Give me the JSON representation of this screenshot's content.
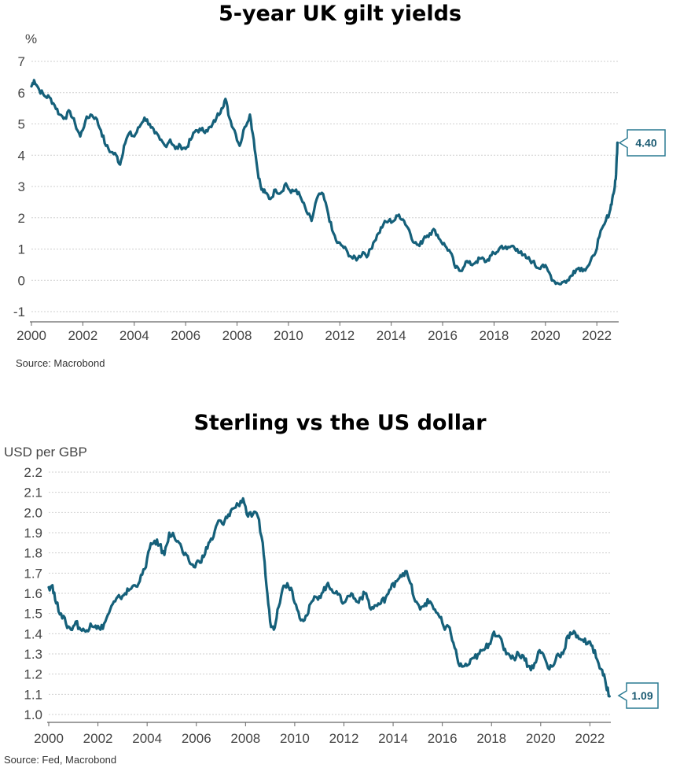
{
  "colors": {
    "line": "#15607a",
    "grid": "#cfcfcf",
    "axis": "#666666",
    "callout_border": "#2a7a92"
  },
  "chart_data": [
    {
      "type": "line",
      "title": "5-year UK gilt yields",
      "ylabel": "%",
      "source": "Source: Macrobond",
      "xlim": [
        2000,
        2022.85
      ],
      "ylim": [
        -1,
        7
      ],
      "xticks": [
        "2000",
        "2002",
        "2004",
        "2006",
        "2008",
        "2010",
        "2012",
        "2014",
        "2016",
        "2018",
        "2020",
        "2022"
      ],
      "yticks": [
        "-1",
        "0",
        "1",
        "2",
        "3",
        "4",
        "5",
        "6",
        "7"
      ],
      "last_value_label": "4.40",
      "series": [
        {
          "name": "5-year UK gilt yield",
          "x": [
            2000.0,
            2000.1,
            2000.3,
            2000.5,
            2000.7,
            2000.9,
            2001.1,
            2001.3,
            2001.5,
            2001.7,
            2001.9,
            2002.1,
            2002.3,
            2002.5,
            2002.7,
            2002.9,
            2003.1,
            2003.3,
            2003.45,
            2003.6,
            2003.8,
            2004.0,
            2004.2,
            2004.4,
            2004.6,
            2004.8,
            2005.0,
            2005.2,
            2005.4,
            2005.6,
            2005.8,
            2006.0,
            2006.2,
            2006.4,
            2006.6,
            2006.8,
            2007.0,
            2007.2,
            2007.4,
            2007.55,
            2007.7,
            2007.9,
            2008.1,
            2008.3,
            2008.5,
            2008.65,
            2008.8,
            2008.95,
            2009.1,
            2009.3,
            2009.5,
            2009.7,
            2009.9,
            2010.1,
            2010.3,
            2010.5,
            2010.7,
            2010.9,
            2011.1,
            2011.3,
            2011.5,
            2011.7,
            2011.9,
            2012.1,
            2012.3,
            2012.5,
            2012.7,
            2012.9,
            2013.1,
            2013.3,
            2013.5,
            2013.7,
            2013.9,
            2014.1,
            2014.3,
            2014.5,
            2014.7,
            2014.9,
            2015.1,
            2015.3,
            2015.5,
            2015.7,
            2015.9,
            2016.1,
            2016.3,
            2016.5,
            2016.7,
            2016.9,
            2017.1,
            2017.3,
            2017.5,
            2017.7,
            2017.9,
            2018.1,
            2018.3,
            2018.5,
            2018.7,
            2018.9,
            2019.1,
            2019.3,
            2019.5,
            2019.7,
            2019.9,
            2020.1,
            2020.3,
            2020.5,
            2020.7,
            2020.9,
            2021.1,
            2021.3,
            2021.5,
            2021.7,
            2021.9,
            2022.1,
            2022.3,
            2022.5,
            2022.6,
            2022.7,
            2022.75,
            2022.8
          ],
          "values": [
            6.2,
            6.4,
            6.1,
            5.9,
            5.85,
            5.6,
            5.3,
            5.2,
            5.4,
            5.0,
            4.6,
            5.1,
            5.3,
            5.2,
            4.8,
            4.3,
            4.1,
            4.0,
            3.7,
            4.3,
            4.7,
            4.6,
            4.9,
            5.2,
            5.0,
            4.7,
            4.5,
            4.3,
            4.5,
            4.2,
            4.3,
            4.2,
            4.5,
            4.8,
            4.8,
            4.8,
            4.9,
            5.2,
            5.5,
            5.8,
            5.2,
            4.8,
            4.3,
            4.9,
            5.3,
            4.5,
            3.5,
            2.9,
            2.8,
            2.6,
            2.9,
            2.8,
            3.1,
            2.8,
            2.9,
            2.6,
            2.2,
            1.9,
            2.6,
            2.8,
            2.3,
            1.6,
            1.2,
            1.1,
            0.9,
            0.7,
            0.7,
            0.9,
            0.8,
            1.2,
            1.5,
            1.8,
            1.9,
            1.9,
            2.1,
            1.9,
            1.6,
            1.2,
            1.1,
            1.4,
            1.5,
            1.6,
            1.3,
            1.1,
            0.9,
            0.4,
            0.3,
            0.6,
            0.5,
            0.6,
            0.7,
            0.6,
            0.8,
            0.9,
            1.1,
            1.0,
            1.1,
            1.0,
            0.8,
            0.7,
            0.6,
            0.4,
            0.5,
            0.3,
            0.0,
            -0.1,
            -0.05,
            0.0,
            0.3,
            0.4,
            0.35,
            0.5,
            0.8,
            1.4,
            1.8,
            2.2,
            2.6,
            3.0,
            3.4,
            4.4
          ]
        }
      ]
    },
    {
      "type": "line",
      "title": "Sterling vs the US dollar",
      "ylabel": "USD per GBP",
      "source": "Source: Fed, Macrobond",
      "xlim": [
        2000,
        2022.85
      ],
      "ylim": [
        1.0,
        2.2
      ],
      "xticks": [
        "2000",
        "2002",
        "2004",
        "2006",
        "2008",
        "2010",
        "2012",
        "2014",
        "2016",
        "2018",
        "2020",
        "2022"
      ],
      "yticks": [
        "1.0",
        "1.1",
        "1.2",
        "1.3",
        "1.4",
        "1.5",
        "1.6",
        "1.7",
        "1.8",
        "1.9",
        "2.0",
        "2.1",
        "2.2"
      ],
      "last_value_label": "1.09",
      "series": [
        {
          "name": "USD per GBP",
          "x": [
            2000.0,
            2000.15,
            2000.3,
            2000.5,
            2000.7,
            2000.9,
            2001.1,
            2001.3,
            2001.5,
            2001.7,
            2001.9,
            2002.1,
            2002.3,
            2002.5,
            2002.7,
            2002.9,
            2003.1,
            2003.3,
            2003.5,
            2003.7,
            2003.9,
            2004.1,
            2004.3,
            2004.5,
            2004.7,
            2004.9,
            2005.1,
            2005.3,
            2005.5,
            2005.7,
            2005.9,
            2006.1,
            2006.3,
            2006.5,
            2006.7,
            2006.9,
            2007.1,
            2007.3,
            2007.5,
            2007.7,
            2007.9,
            2008.1,
            2008.3,
            2008.5,
            2008.7,
            2008.85,
            2009.0,
            2009.15,
            2009.3,
            2009.5,
            2009.7,
            2009.9,
            2010.1,
            2010.3,
            2010.5,
            2010.7,
            2010.9,
            2011.1,
            2011.3,
            2011.5,
            2011.7,
            2011.9,
            2012.1,
            2012.3,
            2012.5,
            2012.7,
            2012.9,
            2013.1,
            2013.3,
            2013.5,
            2013.7,
            2013.9,
            2014.1,
            2014.3,
            2014.5,
            2014.7,
            2014.9,
            2015.1,
            2015.3,
            2015.5,
            2015.7,
            2015.9,
            2016.1,
            2016.3,
            2016.5,
            2016.7,
            2016.9,
            2017.1,
            2017.3,
            2017.5,
            2017.7,
            2017.9,
            2018.1,
            2018.3,
            2018.5,
            2018.7,
            2018.9,
            2019.1,
            2019.3,
            2019.5,
            2019.7,
            2019.9,
            2020.1,
            2020.3,
            2020.5,
            2020.7,
            2020.9,
            2021.1,
            2021.3,
            2021.5,
            2021.7,
            2021.9,
            2022.1,
            2022.3,
            2022.5,
            2022.65,
            2022.8
          ],
          "values": [
            1.63,
            1.64,
            1.55,
            1.5,
            1.45,
            1.42,
            1.46,
            1.42,
            1.41,
            1.45,
            1.44,
            1.42,
            1.46,
            1.52,
            1.56,
            1.58,
            1.6,
            1.62,
            1.64,
            1.66,
            1.72,
            1.82,
            1.86,
            1.84,
            1.79,
            1.9,
            1.88,
            1.85,
            1.79,
            1.76,
            1.73,
            1.76,
            1.78,
            1.85,
            1.88,
            1.96,
            1.94,
            1.99,
            2.02,
            2.04,
            2.07,
            1.98,
            1.99,
            1.98,
            1.85,
            1.64,
            1.46,
            1.42,
            1.52,
            1.62,
            1.65,
            1.61,
            1.52,
            1.47,
            1.49,
            1.56,
            1.58,
            1.6,
            1.64,
            1.62,
            1.61,
            1.56,
            1.57,
            1.6,
            1.56,
            1.58,
            1.6,
            1.52,
            1.54,
            1.55,
            1.58,
            1.62,
            1.66,
            1.69,
            1.71,
            1.65,
            1.56,
            1.52,
            1.55,
            1.56,
            1.52,
            1.48,
            1.42,
            1.43,
            1.33,
            1.24,
            1.24,
            1.25,
            1.28,
            1.3,
            1.32,
            1.35,
            1.41,
            1.39,
            1.32,
            1.3,
            1.28,
            1.3,
            1.29,
            1.24,
            1.23,
            1.31,
            1.3,
            1.23,
            1.24,
            1.3,
            1.3,
            1.39,
            1.4,
            1.39,
            1.37,
            1.35,
            1.34,
            1.27,
            1.22,
            1.15,
            1.09
          ]
        }
      ]
    }
  ]
}
